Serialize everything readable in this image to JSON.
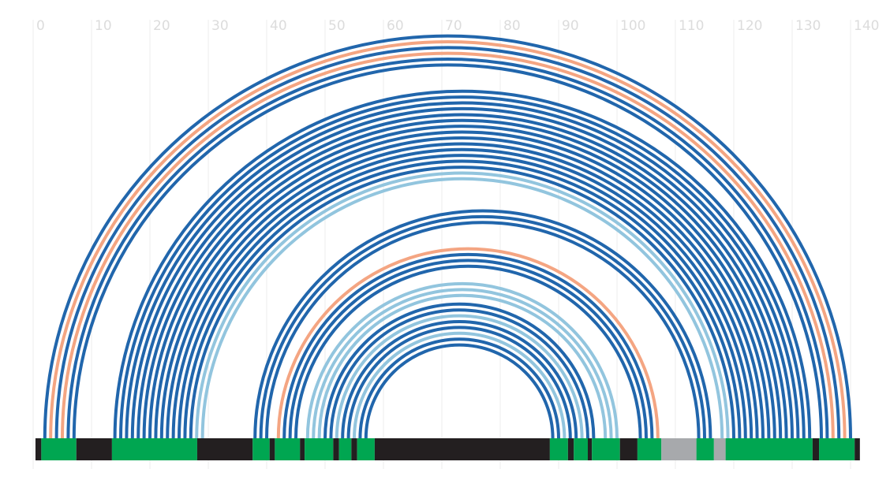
{
  "chart_data": {
    "type": "arc",
    "xlim": [
      0,
      140
    ],
    "xticks": [
      0,
      10,
      20,
      30,
      40,
      50,
      60,
      70,
      80,
      90,
      100,
      110,
      120,
      130,
      140
    ],
    "grid": true,
    "arcs": [
      {
        "start": 2,
        "end": 140,
        "color": "#2166ac"
      },
      {
        "start": 3,
        "end": 139,
        "color": "#f4a582"
      },
      {
        "start": 4,
        "end": 138,
        "color": "#2166ac"
      },
      {
        "start": 5,
        "end": 137,
        "color": "#f4a582"
      },
      {
        "start": 6,
        "end": 136,
        "color": "#2166ac"
      },
      {
        "start": 7,
        "end": 135,
        "color": "#2166ac"
      },
      {
        "start": 14,
        "end": 133,
        "color": "#2166ac"
      },
      {
        "start": 15,
        "end": 132,
        "color": "#2166ac"
      },
      {
        "start": 16,
        "end": 131,
        "color": "#2166ac"
      },
      {
        "start": 17,
        "end": 130,
        "color": "#2166ac"
      },
      {
        "start": 18,
        "end": 129,
        "color": "#2166ac"
      },
      {
        "start": 19,
        "end": 128,
        "color": "#2166ac"
      },
      {
        "start": 20,
        "end": 127,
        "color": "#2166ac"
      },
      {
        "start": 21,
        "end": 126,
        "color": "#2166ac"
      },
      {
        "start": 22,
        "end": 125,
        "color": "#2166ac"
      },
      {
        "start": 23,
        "end": 124,
        "color": "#2166ac"
      },
      {
        "start": 24,
        "end": 123,
        "color": "#2166ac"
      },
      {
        "start": 25,
        "end": 122,
        "color": "#2166ac"
      },
      {
        "start": 26,
        "end": 121,
        "color": "#2166ac"
      },
      {
        "start": 27,
        "end": 120,
        "color": "#2166ac"
      },
      {
        "start": 28,
        "end": 119,
        "color": "#92c5de"
      },
      {
        "start": 29,
        "end": 118,
        "color": "#92c5de"
      },
      {
        "start": 38,
        "end": 116,
        "color": "#2166ac"
      },
      {
        "start": 39,
        "end": 115,
        "color": "#2166ac"
      },
      {
        "start": 40,
        "end": 114,
        "color": "#2166ac"
      },
      {
        "start": 42,
        "end": 107,
        "color": "#f4a582"
      },
      {
        "start": 43,
        "end": 106,
        "color": "#2166ac"
      },
      {
        "start": 44,
        "end": 105,
        "color": "#2166ac"
      },
      {
        "start": 45,
        "end": 104,
        "color": "#2166ac"
      },
      {
        "start": 47,
        "end": 100,
        "color": "#92c5de"
      },
      {
        "start": 48,
        "end": 99,
        "color": "#92c5de"
      },
      {
        "start": 49,
        "end": 98,
        "color": "#92c5de"
      },
      {
        "start": 50,
        "end": 96,
        "color": "#2166ac"
      },
      {
        "start": 51,
        "end": 95,
        "color": "#2166ac"
      },
      {
        "start": 52,
        "end": 94,
        "color": "#92c5de"
      },
      {
        "start": 53,
        "end": 93,
        "color": "#2166ac"
      },
      {
        "start": 54,
        "end": 92,
        "color": "#2166ac"
      },
      {
        "start": 55,
        "end": 91,
        "color": "#92c5de"
      },
      {
        "start": 56,
        "end": 90,
        "color": "#2166ac"
      },
      {
        "start": 57,
        "end": 89,
        "color": "#2166ac"
      }
    ],
    "track": [
      {
        "start": 0.4,
        "end": 1.4,
        "color": "#231f20"
      },
      {
        "start": 1.4,
        "end": 7.4,
        "color": "#00a651"
      },
      {
        "start": 7.4,
        "end": 13.5,
        "color": "#231f20"
      },
      {
        "start": 13.5,
        "end": 28.1,
        "color": "#00a651"
      },
      {
        "start": 28.1,
        "end": 37.6,
        "color": "#231f20"
      },
      {
        "start": 37.6,
        "end": 40.5,
        "color": "#00a651"
      },
      {
        "start": 40.5,
        "end": 41.4,
        "color": "#231f20"
      },
      {
        "start": 41.4,
        "end": 45.7,
        "color": "#00a651"
      },
      {
        "start": 45.7,
        "end": 46.5,
        "color": "#231f20"
      },
      {
        "start": 46.5,
        "end": 51.4,
        "color": "#00a651"
      },
      {
        "start": 51.4,
        "end": 52.4,
        "color": "#231f20"
      },
      {
        "start": 52.4,
        "end": 54.5,
        "color": "#00a651"
      },
      {
        "start": 54.5,
        "end": 55.5,
        "color": "#231f20"
      },
      {
        "start": 55.5,
        "end": 58.5,
        "color": "#00a651"
      },
      {
        "start": 58.5,
        "end": 88.5,
        "color": "#231f20"
      },
      {
        "start": 88.5,
        "end": 91.6,
        "color": "#00a651"
      },
      {
        "start": 91.6,
        "end": 92.6,
        "color": "#231f20"
      },
      {
        "start": 92.6,
        "end": 95,
        "color": "#00a651"
      },
      {
        "start": 95,
        "end": 95.7,
        "color": "#231f20"
      },
      {
        "start": 95.7,
        "end": 100.5,
        "color": "#00a651"
      },
      {
        "start": 100.5,
        "end": 103.5,
        "color": "#231f20"
      },
      {
        "start": 103.5,
        "end": 107.6,
        "color": "#00a651"
      },
      {
        "start": 107.6,
        "end": 113.6,
        "color": "#a7a9ac"
      },
      {
        "start": 113.6,
        "end": 116.6,
        "color": "#00a651"
      },
      {
        "start": 116.6,
        "end": 118.6,
        "color": "#a7a9ac"
      },
      {
        "start": 118.6,
        "end": 133.5,
        "color": "#00a651"
      },
      {
        "start": 133.5,
        "end": 134.6,
        "color": "#231f20"
      },
      {
        "start": 134.6,
        "end": 140.7,
        "color": "#00a651"
      },
      {
        "start": 140.7,
        "end": 141.6,
        "color": "#231f20"
      }
    ]
  }
}
